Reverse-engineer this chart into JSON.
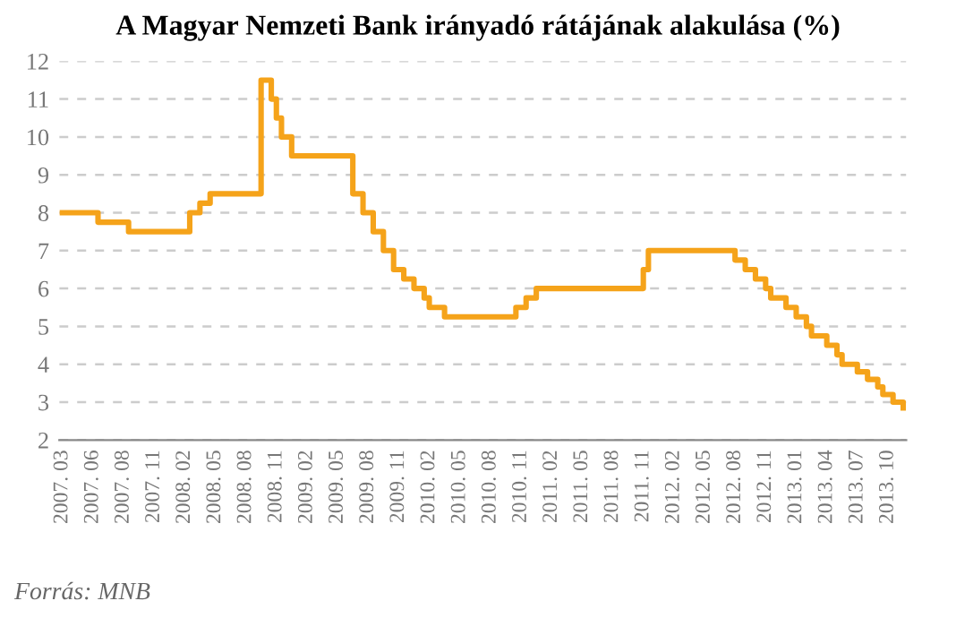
{
  "chart_data": {
    "type": "step",
    "title": "A Magyar Nemzeti Bank irányadó rátájának alakulása (%)",
    "categories": [
      "2007. 03",
      null,
      null,
      null,
      null,
      null,
      "2007. 06",
      null,
      null,
      null,
      null,
      null,
      "2007. 08",
      null,
      null,
      null,
      null,
      null,
      "2007. 11",
      null,
      null,
      null,
      null,
      null,
      "2008. 02",
      null,
      null,
      null,
      null,
      null,
      "2008. 05",
      null,
      null,
      null,
      null,
      null,
      "2008. 08",
      null,
      null,
      null,
      null,
      null,
      "2008. 11",
      null,
      null,
      null,
      null,
      null,
      "2009. 02",
      null,
      null,
      null,
      null,
      null,
      "2009. 05",
      null,
      null,
      null,
      null,
      null,
      "2009. 08",
      null,
      null,
      null,
      null,
      null,
      "2009. 11",
      null,
      null,
      null,
      null,
      null,
      "2010. 02",
      null,
      null,
      null,
      null,
      null,
      "2010. 05",
      null,
      null,
      null,
      null,
      null,
      "2010. 08",
      null,
      null,
      null,
      null,
      null,
      "2010. 11",
      null,
      null,
      null,
      null,
      null,
      "2011. 02",
      null,
      null,
      null,
      null,
      null,
      "2011. 05",
      null,
      null,
      null,
      null,
      null,
      "2011. 08",
      null,
      null,
      null,
      null,
      null,
      "2011. 11",
      null,
      null,
      null,
      null,
      null,
      "2012. 02",
      null,
      null,
      null,
      null,
      null,
      "2012. 05",
      null,
      null,
      null,
      null,
      null,
      "2012. 08",
      null,
      null,
      null,
      null,
      null,
      "2012. 11",
      null,
      null,
      null,
      null,
      null,
      "2013. 01",
      null,
      null,
      null,
      null,
      null,
      "2013. 04",
      null,
      null,
      null,
      null,
      null,
      "2013. 07",
      null,
      null,
      null,
      null,
      null,
      "2013. 10",
      null,
      null,
      null
    ],
    "series": [
      {
        "color": "#f5a31a",
        "values": [
          8,
          8,
          8,
          8,
          8,
          8,
          8,
          7.75,
          7.75,
          7.75,
          7.75,
          7.75,
          7.75,
          7.5,
          7.5,
          7.5,
          7.5,
          7.5,
          7.5,
          7.5,
          7.5,
          7.5,
          7.5,
          7.5,
          7.5,
          8,
          8,
          8.25,
          8.25,
          8.5,
          8.5,
          8.5,
          8.5,
          8.5,
          8.5,
          8.5,
          8.5,
          8.5,
          8.5,
          11.5,
          11.5,
          11,
          10.5,
          10,
          10,
          9.5,
          9.5,
          9.5,
          9.5,
          9.5,
          9.5,
          9.5,
          9.5,
          9.5,
          9.5,
          9.5,
          9.5,
          8.5,
          8.5,
          8,
          8,
          7.5,
          7.5,
          7,
          7,
          6.5,
          6.5,
          6.25,
          6.25,
          6,
          6,
          5.75,
          5.5,
          5.5,
          5.5,
          5.25,
          5.25,
          5.25,
          5.25,
          5.25,
          5.25,
          5.25,
          5.25,
          5.25,
          5.25,
          5.25,
          5.25,
          5.25,
          5.25,
          5.5,
          5.5,
          5.75,
          5.75,
          6,
          6,
          6,
          6,
          6,
          6,
          6,
          6,
          6,
          6,
          6,
          6,
          6,
          6,
          6,
          6,
          6,
          6,
          6,
          6,
          6,
          6.5,
          7,
          7,
          7,
          7,
          7,
          7,
          7,
          7,
          7,
          7,
          7,
          7,
          7,
          7,
          7,
          7,
          7,
          6.75,
          6.75,
          6.5,
          6.5,
          6.25,
          6.25,
          6,
          5.75,
          5.75,
          5.75,
          5.5,
          5.5,
          5.25,
          5.25,
          5,
          4.75,
          4.75,
          4.75,
          4.5,
          4.5,
          4.25,
          4,
          4,
          4,
          3.8,
          3.8,
          3.6,
          3.6,
          3.4,
          3.2,
          3.2,
          3,
          3,
          2.85
        ]
      }
    ],
    "ylim": [
      2,
      12
    ],
    "yticks": [
      2,
      3,
      4,
      5,
      6,
      7,
      8,
      9,
      10,
      11,
      12
    ],
    "grid": "y",
    "legend": false,
    "line_style": "solid",
    "marker": "none",
    "annotations": [
      "Forrás: MNB"
    ]
  }
}
